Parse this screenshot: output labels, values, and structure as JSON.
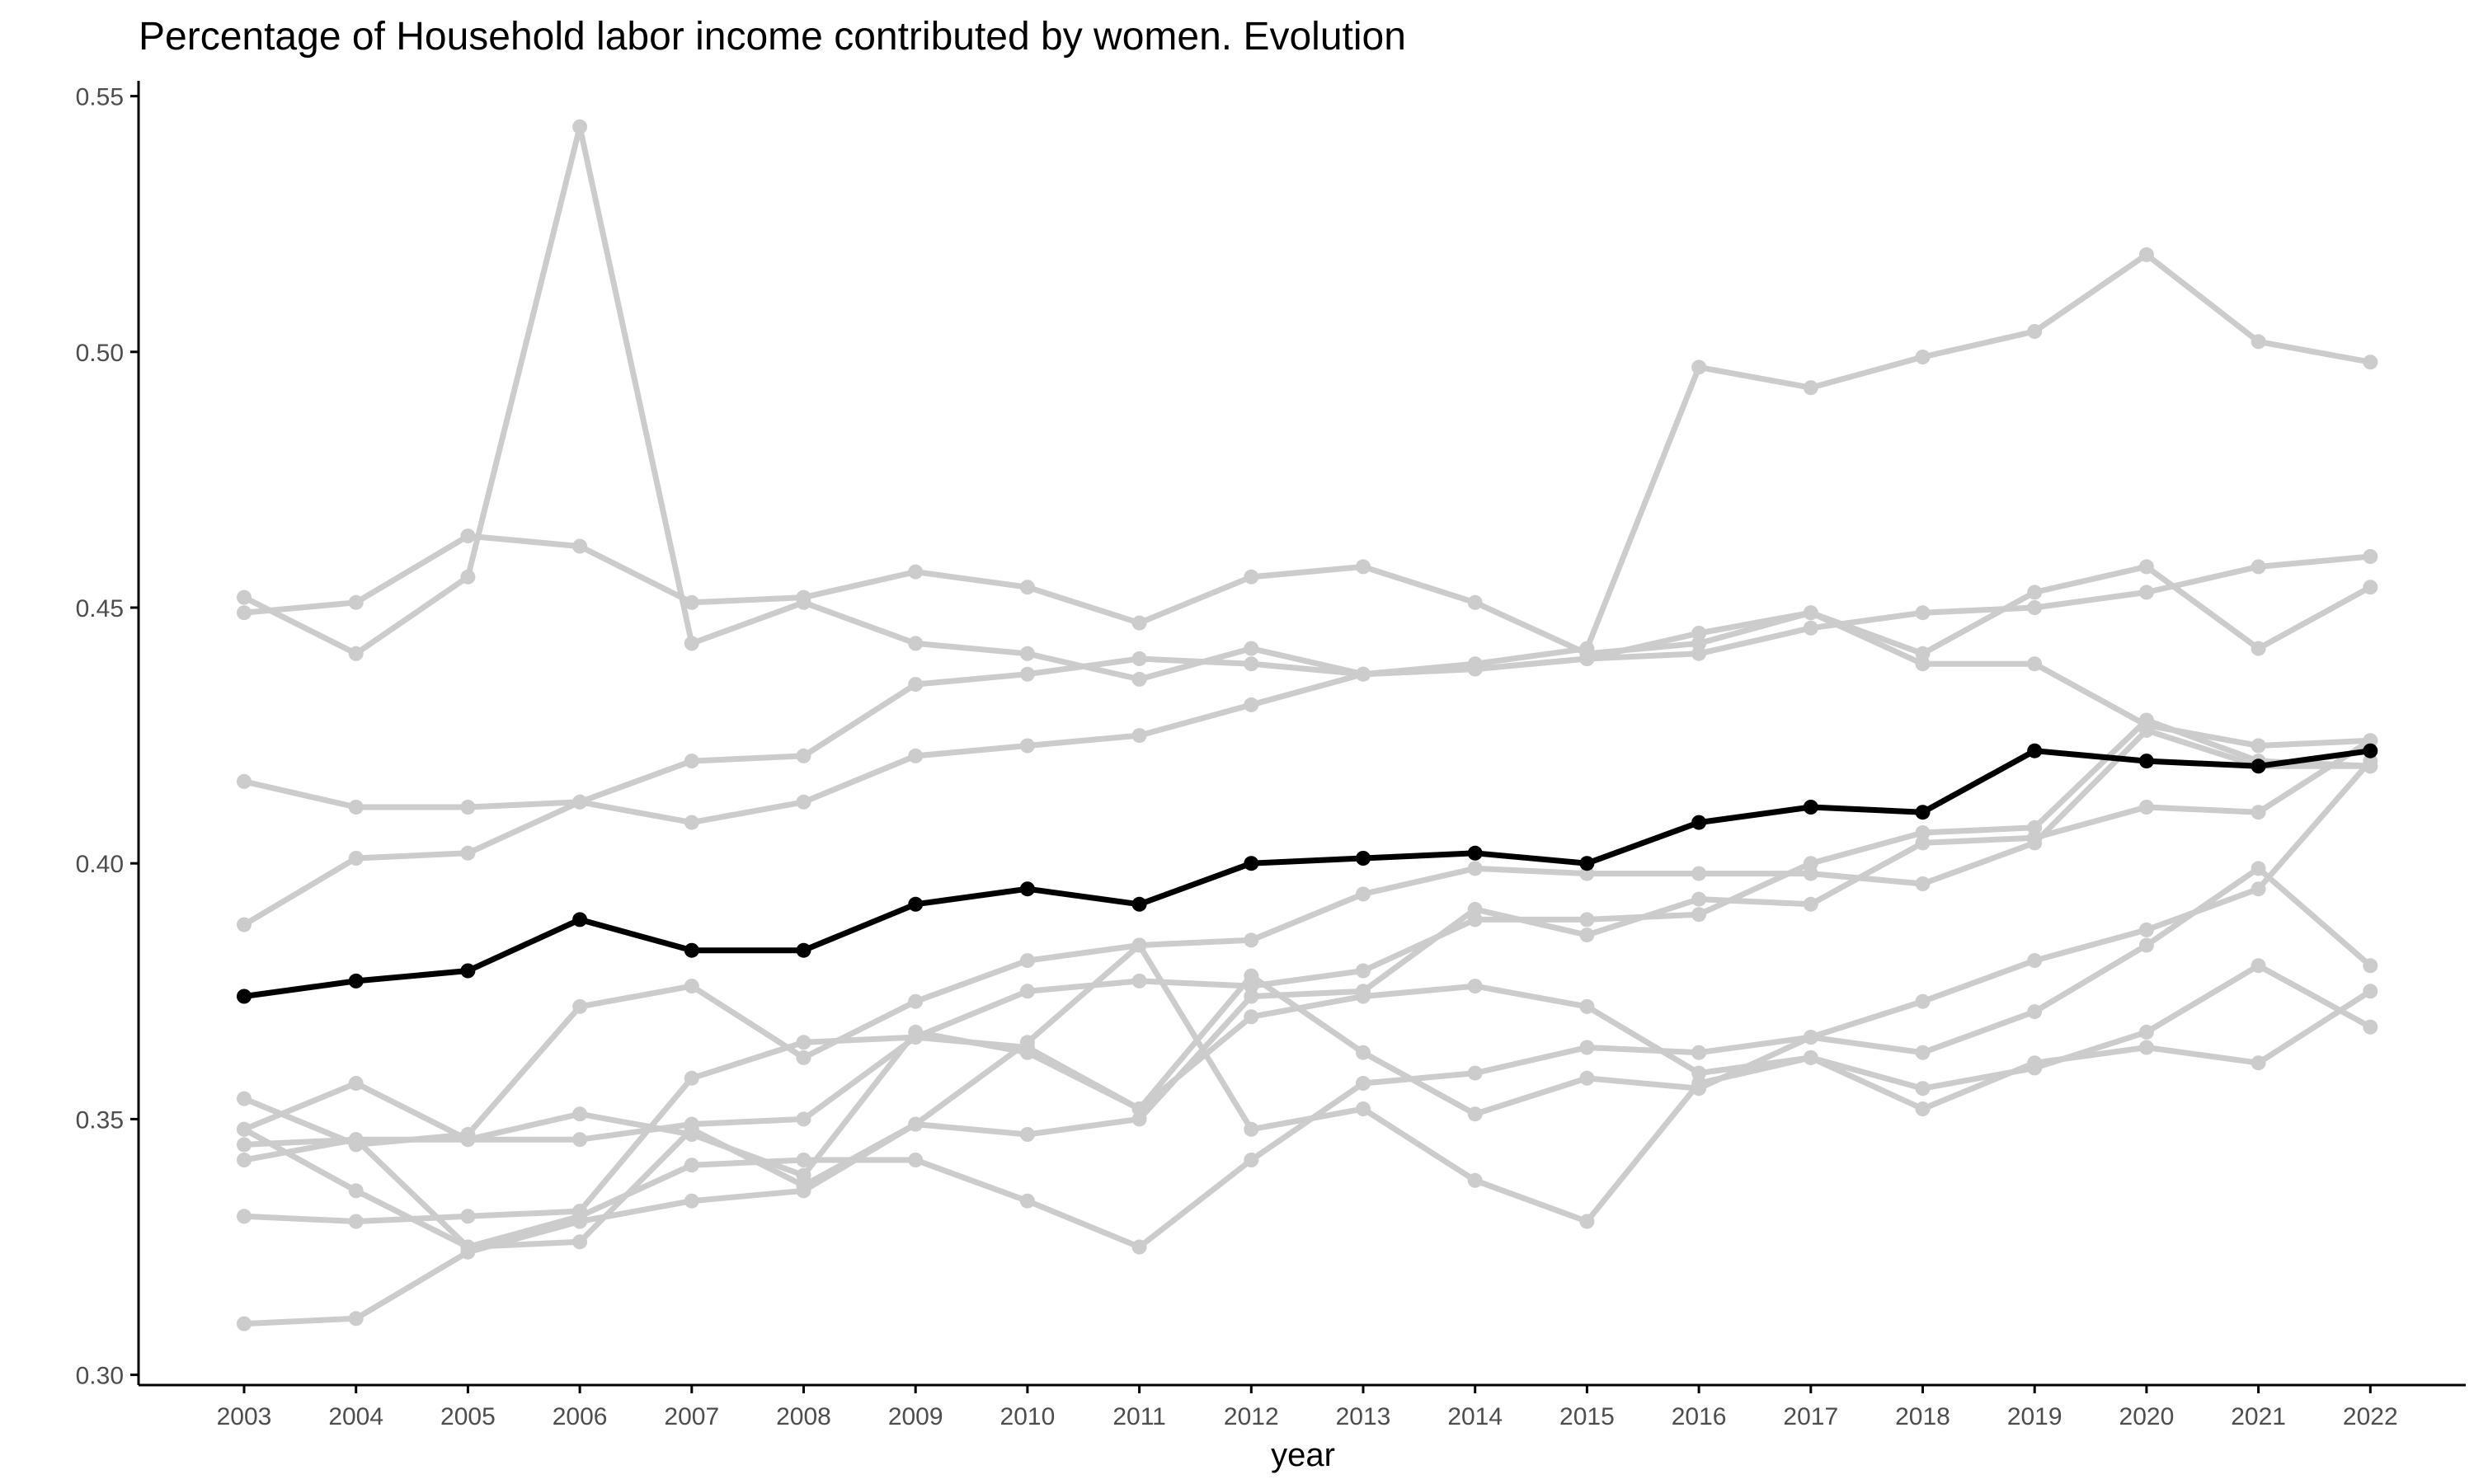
{
  "chart_data": {
    "type": "line",
    "title": "Percentage of Household labor income contributed by women. Evolution",
    "xlabel": "year",
    "ylabel": "",
    "x": [
      2003,
      2004,
      2005,
      2006,
      2007,
      2008,
      2009,
      2010,
      2011,
      2012,
      2013,
      2014,
      2015,
      2016,
      2017,
      2018,
      2019,
      2020,
      2021,
      2022
    ],
    "ylim": [
      0.298,
      0.553
    ],
    "yticks": [
      0.3,
      0.35,
      0.4,
      0.45,
      0.5,
      0.55
    ],
    "ytick_labels": [
      "0.30",
      "0.35",
      "0.40",
      "0.45",
      "0.50",
      "0.55"
    ],
    "grid": false,
    "legend": "none",
    "colors": {
      "highlight": "#000000",
      "background_series": "#cccccc",
      "axis": "#000000",
      "tick_label": "#4d4d4d"
    },
    "series": [
      {
        "highlight": false,
        "values": [
          0.449,
          0.451,
          0.464,
          0.462,
          0.451,
          0.452,
          0.457,
          0.454,
          0.447,
          0.456,
          0.458,
          0.451,
          0.441,
          0.443,
          0.449,
          0.441,
          0.453,
          0.458,
          0.442,
          0.454
        ]
      },
      {
        "highlight": false,
        "values": [
          0.452,
          0.441,
          0.456,
          0.544,
          0.443,
          0.451,
          0.443,
          0.441,
          0.436,
          0.442,
          0.437,
          0.438,
          0.44,
          0.445,
          0.449,
          0.439,
          0.439,
          0.427,
          0.423,
          0.424
        ]
      },
      {
        "highlight": false,
        "values": [
          0.416,
          0.411,
          0.411,
          0.412,
          0.408,
          0.412,
          0.421,
          0.423,
          0.425,
          0.431,
          0.437,
          0.438,
          0.44,
          0.441,
          0.446,
          0.449,
          0.45,
          0.453,
          0.458,
          0.46
        ]
      },
      {
        "highlight": false,
        "values": [
          0.388,
          0.401,
          0.402,
          0.412,
          0.42,
          0.421,
          0.435,
          0.437,
          0.44,
          0.439,
          0.437,
          0.439,
          0.442,
          0.497,
          0.493,
          0.499,
          0.504,
          0.519,
          0.502,
          0.498
        ]
      },
      {
        "highlight": false,
        "values": [
          0.354,
          0.345,
          0.347,
          0.372,
          0.376,
          0.362,
          0.373,
          0.381,
          0.384,
          0.385,
          0.394,
          0.399,
          0.398,
          0.398,
          0.398,
          0.396,
          0.404,
          0.426,
          0.419,
          0.419
        ]
      },
      {
        "highlight": false,
        "values": [
          0.348,
          0.357,
          0.346,
          0.351,
          0.347,
          0.339,
          0.367,
          0.363,
          0.352,
          0.37,
          0.374,
          0.376,
          0.372,
          0.359,
          0.362,
          0.352,
          0.361,
          0.364,
          0.361,
          0.375
        ]
      },
      {
        "highlight": false,
        "values": [
          0.342,
          0.346,
          0.346,
          0.346,
          0.349,
          0.35,
          0.366,
          0.375,
          0.377,
          0.376,
          0.379,
          0.389,
          0.389,
          0.39,
          0.4,
          0.406,
          0.407,
          0.428,
          0.42,
          0.419
        ]
      },
      {
        "highlight": false,
        "values": [
          0.331,
          0.33,
          0.331,
          0.332,
          0.358,
          0.365,
          0.366,
          0.364,
          0.352,
          0.378,
          0.363,
          0.351,
          0.358,
          0.356,
          0.366,
          0.363,
          0.371,
          0.384,
          0.399,
          0.38
        ]
      },
      {
        "highlight": false,
        "values": [
          0.348,
          0.336,
          0.325,
          0.326,
          0.348,
          0.337,
          0.349,
          0.347,
          0.35,
          0.374,
          0.375,
          0.391,
          0.386,
          0.393,
          0.392,
          0.404,
          0.405,
          0.411,
          0.41,
          0.424
        ]
      },
      {
        "highlight": false,
        "values": [
          0.31,
          0.311,
          0.324,
          0.33,
          0.334,
          0.336,
          0.349,
          0.365,
          0.384,
          0.348,
          0.352,
          0.338,
          0.33,
          0.357,
          0.362,
          0.356,
          0.36,
          0.367,
          0.38,
          0.368
        ]
      },
      {
        "highlight": false,
        "values": [
          0.345,
          0.346,
          0.325,
          0.331,
          0.341,
          0.342,
          0.342,
          0.334,
          0.325,
          0.342,
          0.357,
          0.359,
          0.364,
          0.363,
          0.366,
          0.373,
          0.381,
          0.387,
          0.395,
          0.42
        ]
      },
      {
        "highlight": true,
        "values": [
          0.374,
          0.377,
          0.379,
          0.389,
          0.383,
          0.383,
          0.392,
          0.395,
          0.392,
          0.4,
          0.401,
          0.402,
          0.4,
          0.408,
          0.411,
          0.41,
          0.422,
          0.42,
          0.419,
          0.422
        ]
      }
    ]
  }
}
